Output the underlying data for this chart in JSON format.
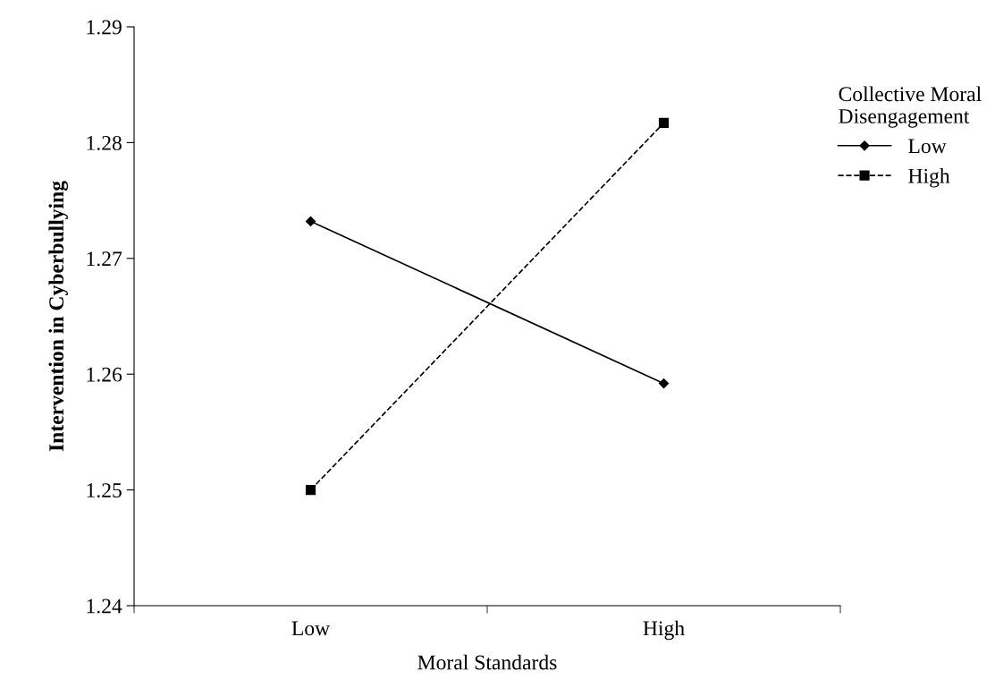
{
  "chart_data": {
    "type": "line",
    "xlabel": "Moral Standards",
    "ylabel": "Intervention in Cyberbullying",
    "legend_title": "Collective Moral\nDisengagement",
    "categories": [
      "Low",
      "High"
    ],
    "series": [
      {
        "name": "Low",
        "color": "#000000",
        "values": [
          1.2732,
          1.2592
        ],
        "marker": "diamond",
        "line_style": "solid"
      },
      {
        "name": "High",
        "color": "#000000",
        "values": [
          1.25,
          1.2817
        ],
        "marker": "square",
        "line_style": "dashed"
      }
    ],
    "ylim": [
      1.24,
      1.29
    ],
    "yticks": [
      1.24,
      1.25,
      1.26,
      1.27,
      1.28,
      1.29
    ],
    "grid": false,
    "legend": "top right"
  }
}
